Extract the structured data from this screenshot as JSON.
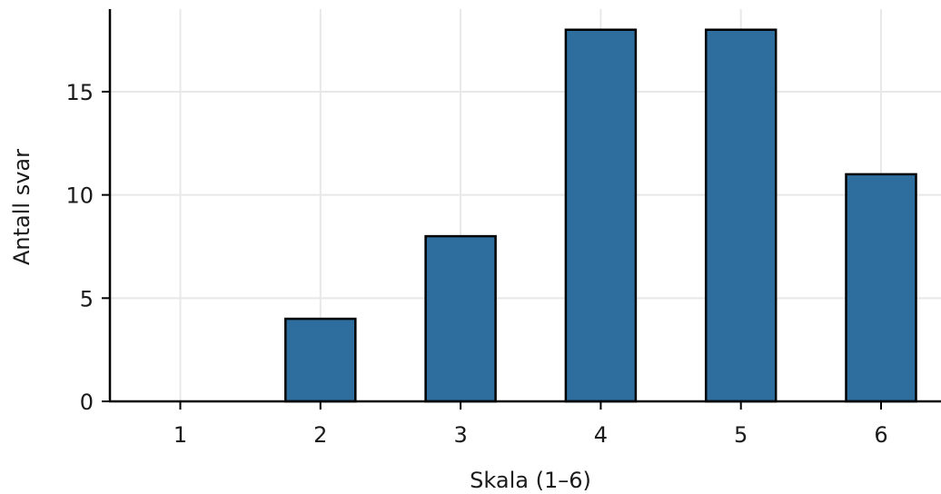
{
  "chart_data": {
    "type": "bar",
    "categories": [
      "1",
      "2",
      "3",
      "4",
      "5",
      "6"
    ],
    "values": [
      0,
      4,
      8,
      18,
      18,
      11
    ],
    "xlabel": "Skala (1–6)",
    "ylabel": "Antall svar",
    "ylim": [
      0,
      19
    ],
    "yticks": [
      0,
      5,
      10,
      15
    ],
    "grid": true,
    "bar_color": "#2e6e9e",
    "edge_color": "#000000"
  }
}
